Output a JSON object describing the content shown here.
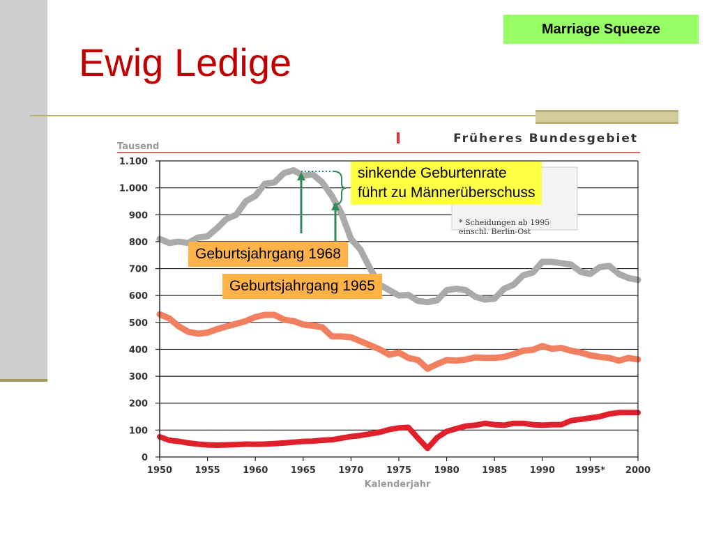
{
  "slide": {
    "title": "Ewig Ledige",
    "tag": "Marriage Squeeze",
    "note_line1": "sinkende Geburtenrate",
    "note_line2": "führt zu Männerüberschuss",
    "callout_1968": "Geburtsjahrgang 1968",
    "callout_1965": "Geburtsjahrgang 1965"
  },
  "colors": {
    "title": "#c00000",
    "tag_bg": "#99ff66",
    "note_bg": "#ffff44",
    "callout_bg": "#ffb347",
    "arrow": "#2e8b57",
    "series_births": "#aaaaaa",
    "series_marriages": "#f08060",
    "series_divorces": "#e0202a"
  },
  "chart_data": {
    "type": "line",
    "title": "Früheres Bundesgebiet",
    "ylabel": "Tausend",
    "xlabel": "Kalenderjahr",
    "xlim": [
      1950,
      2000
    ],
    "ylim": [
      0,
      1100
    ],
    "grid": true,
    "y_ticks": [
      {
        "value": 0,
        "label": "0"
      },
      {
        "value": 100,
        "label": "100"
      },
      {
        "value": 200,
        "label": "200"
      },
      {
        "value": 300,
        "label": "300"
      },
      {
        "value": 400,
        "label": "400"
      },
      {
        "value": 500,
        "label": "500"
      },
      {
        "value": 600,
        "label": "600"
      },
      {
        "value": 700,
        "label": "700"
      },
      {
        "value": 800,
        "label": "800"
      },
      {
        "value": 900,
        "label": "900"
      },
      {
        "value": 1000,
        "label": "1.000"
      },
      {
        "value": 1100,
        "label": "1.100"
      }
    ],
    "x_ticks": [
      {
        "value": 1950,
        "label": "1950"
      },
      {
        "value": 1955,
        "label": "1955"
      },
      {
        "value": 1960,
        "label": "1960"
      },
      {
        "value": 1965,
        "label": "1965"
      },
      {
        "value": 1970,
        "label": "1970"
      },
      {
        "value": 1975,
        "label": "1975"
      },
      {
        "value": 1980,
        "label": "1980"
      },
      {
        "value": 1985,
        "label": "1985"
      },
      {
        "value": 1990,
        "label": "1990"
      },
      {
        "value": 1995,
        "label": "1995*"
      },
      {
        "value": 2000,
        "label": "2000"
      }
    ],
    "footnote_line1": "* Scheidungen ab 1995",
    "footnote_line2": "einschl. Berlin-Ost",
    "legend_position": "top-right",
    "series": [
      {
        "name": "",
        "color": "#aaaaaa",
        "x": [
          1950,
          1951,
          1952,
          1953,
          1954,
          1955,
          1956,
          1957,
          1958,
          1959,
          1960,
          1961,
          1962,
          1963,
          1964,
          1965,
          1966,
          1967,
          1968,
          1969,
          1970,
          1971,
          1972,
          1973,
          1974,
          1975,
          1976,
          1977,
          1978,
          1979,
          1980,
          1981,
          1982,
          1983,
          1984,
          1985,
          1986,
          1987,
          1988,
          1989,
          1990,
          1991,
          1992,
          1993,
          1994,
          1995,
          1996,
          1997,
          1998,
          1999,
          2000
        ],
        "values": [
          810,
          795,
          800,
          795,
          815,
          820,
          850,
          885,
          900,
          950,
          970,
          1015,
          1020,
          1055,
          1065,
          1045,
          1050,
          1020,
          970,
          905,
          810,
          770,
          700,
          640,
          620,
          600,
          602,
          580,
          575,
          582,
          620,
          625,
          620,
          595,
          585,
          588,
          625,
          640,
          675,
          685,
          725,
          725,
          720,
          715,
          688,
          680,
          705,
          710,
          680,
          665,
          658
        ]
      },
      {
        "name": "",
        "color": "#f08060",
        "x": [
          1950,
          1951,
          1952,
          1953,
          1954,
          1955,
          1956,
          1957,
          1958,
          1959,
          1960,
          1961,
          1962,
          1963,
          1964,
          1965,
          1966,
          1967,
          1968,
          1969,
          1970,
          1971,
          1972,
          1973,
          1974,
          1975,
          1976,
          1977,
          1978,
          1979,
          1980,
          1981,
          1982,
          1983,
          1984,
          1985,
          1986,
          1987,
          1988,
          1989,
          1990,
          1991,
          1992,
          1993,
          1994,
          1995,
          1996,
          1997,
          1998,
          1999,
          2000
        ],
        "values": [
          530,
          515,
          485,
          465,
          458,
          462,
          475,
          485,
          495,
          505,
          520,
          528,
          528,
          510,
          505,
          492,
          488,
          482,
          448,
          448,
          445,
          430,
          415,
          400,
          380,
          388,
          368,
          360,
          328,
          345,
          360,
          358,
          362,
          370,
          368,
          368,
          372,
          382,
          395,
          398,
          412,
          402,
          405,
          395,
          388,
          378,
          372,
          368,
          358,
          368,
          362
        ]
      },
      {
        "name": "",
        "color": "#e0202a",
        "x": [
          1950,
          1951,
          1952,
          1953,
          1954,
          1955,
          1956,
          1957,
          1958,
          1959,
          1960,
          1961,
          1962,
          1963,
          1964,
          1965,
          1966,
          1967,
          1968,
          1969,
          1970,
          1971,
          1972,
          1973,
          1974,
          1975,
          1976,
          1977,
          1978,
          1979,
          1980,
          1981,
          1982,
          1983,
          1984,
          1985,
          1986,
          1987,
          1988,
          1989,
          1990,
          1991,
          1992,
          1993,
          1994,
          1995,
          1996,
          1997,
          1998,
          1999,
          2000
        ],
        "values": [
          75,
          62,
          58,
          52,
          48,
          45,
          44,
          45,
          46,
          48,
          47,
          48,
          50,
          52,
          55,
          58,
          59,
          62,
          64,
          70,
          76,
          80,
          86,
          92,
          102,
          108,
          110,
          70,
          32,
          72,
          95,
          105,
          115,
          118,
          125,
          120,
          118,
          125,
          125,
          120,
          118,
          120,
          120,
          135,
          140,
          145,
          150,
          160,
          165,
          165,
          165
        ]
      }
    ]
  }
}
